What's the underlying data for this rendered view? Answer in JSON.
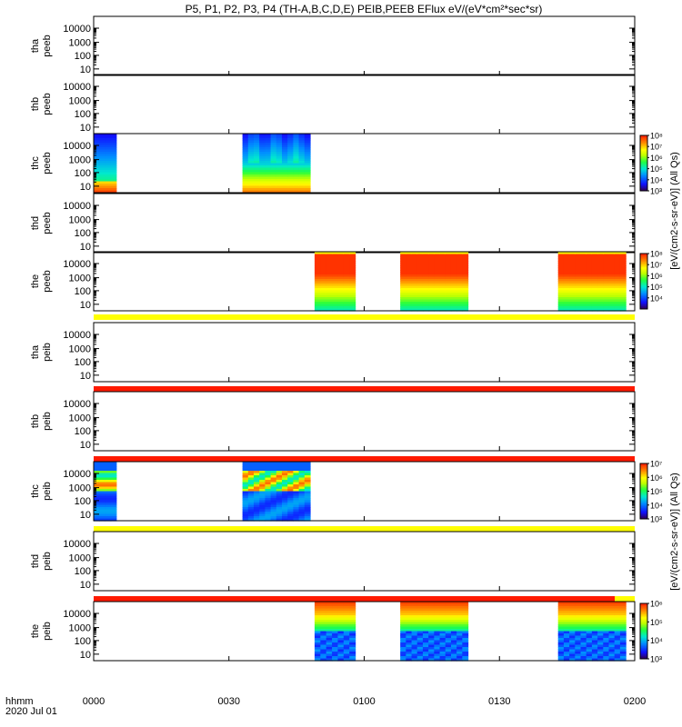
{
  "chart_data": {
    "type": "heatmap",
    "title": "P5, P1, P2, P3, P4 (TH-A,B,C,D,E) PEIB,PEEB EFlux eV/(eV*cm²*sec*sr)",
    "x_time_ticks": [
      "0000",
      "0030",
      "0100",
      "0130",
      "0200"
    ],
    "x_range_hhmm": [
      "0000",
      "0200"
    ],
    "x_axis_label": "hhmm",
    "date_label": "2020 Jul 01",
    "y_scale": "log",
    "y_ticks": [
      "10",
      "100",
      "1000",
      "10000"
    ],
    "colorbar_label": "[eV/(cm2-s-sr-eV)] (All Qs)",
    "panels": [
      {
        "label": [
          "tha",
          "peeb"
        ],
        "data_segments": [],
        "bar_after": null
      },
      {
        "label": [
          "thb",
          "peeb"
        ],
        "data_segments": [],
        "bar_after": null
      },
      {
        "label": [
          "thc",
          "peeb"
        ],
        "data_segments": [
          [
            "0000",
            "0005"
          ],
          [
            "0033",
            "0048"
          ]
        ],
        "pattern": "electron_c",
        "bar_after": null,
        "colorbar": {
          "ticks": [
            "10³",
            "10⁴",
            "10⁵",
            "10⁶",
            "10⁷",
            "10⁸"
          ],
          "log_range": [
            3,
            8
          ]
        }
      },
      {
        "label": [
          "thd",
          "peeb"
        ],
        "data_segments": [],
        "bar_after": null
      },
      {
        "label": [
          "the",
          "peeb"
        ],
        "data_segments": [
          [
            "0049",
            "0058"
          ],
          [
            "0108",
            "0123"
          ],
          [
            "0143",
            "0158"
          ]
        ],
        "pattern": "electron_e",
        "bar_after": "yellow",
        "colorbar": {
          "ticks": [
            "10⁴",
            "10⁵",
            "10⁶",
            "10⁷",
            "10⁸"
          ],
          "log_range": [
            3,
            8
          ]
        }
      },
      {
        "label": [
          "tha",
          "peib"
        ],
        "data_segments": [],
        "bar_after": "red"
      },
      {
        "label": [
          "thb",
          "peib"
        ],
        "data_segments": [],
        "bar_after": "red"
      },
      {
        "label": [
          "thc",
          "peib"
        ],
        "data_segments": [
          [
            "0000",
            "0005"
          ],
          [
            "0033",
            "0048"
          ]
        ],
        "pattern": "ion_c",
        "bar_after": "yellow",
        "colorbar": {
          "ticks": [
            "10³",
            "10⁴",
            "10⁵",
            "10⁶",
            "10⁷"
          ],
          "log_range": [
            3,
            7
          ]
        }
      },
      {
        "label": [
          "thd",
          "peib"
        ],
        "data_segments": [],
        "bar_after": "red_yellow_end"
      },
      {
        "label": [
          "the",
          "peib"
        ],
        "data_segments": [
          [
            "0049",
            "0058"
          ],
          [
            "0108",
            "0123"
          ],
          [
            "0143",
            "0158"
          ]
        ],
        "pattern": "ion_e",
        "bar_after": null,
        "colorbar": {
          "ticks": [
            "10³",
            "10⁴",
            "10⁵",
            "10⁶"
          ],
          "log_range": [
            3,
            6
          ]
        }
      }
    ],
    "colors": {
      "red": "#ff1a00",
      "yellow": "#ffff00",
      "axis": "#000000"
    }
  }
}
